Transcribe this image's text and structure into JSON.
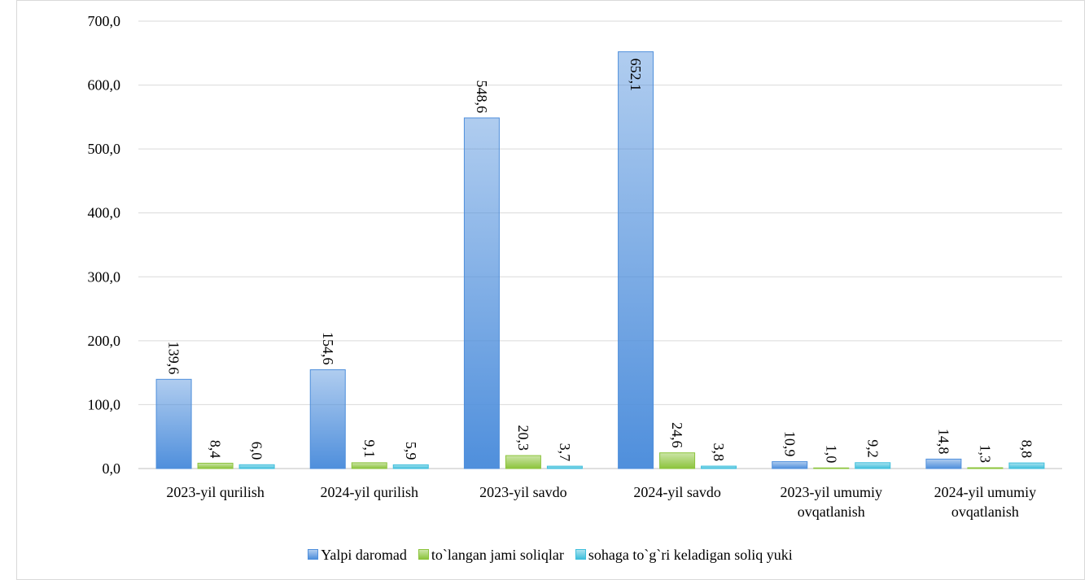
{
  "chart_data": {
    "type": "bar",
    "categories": [
      "2023-yil qurilish",
      "2024-yil qurilish",
      "2023-yil savdo",
      "2024-yil savdo",
      "2023-yil umumiy ovqatlanish",
      "2024-yil umumiy ovqatlanish"
    ],
    "series": [
      {
        "name": "Yalpi daromad",
        "color": "#4f8fdc",
        "values": [
          139.6,
          154.6,
          548.6,
          652.1,
          10.9,
          14.8
        ],
        "value_labels": [
          "139,6",
          "154,6",
          "548,6",
          "652,1",
          "10,9",
          "14,8"
        ]
      },
      {
        "name": "to`langan jami soliqlar",
        "color": "#8cc43c",
        "values": [
          8.4,
          9.1,
          20.3,
          24.6,
          1.0,
          1.3
        ],
        "value_labels": [
          "8,4",
          "9,1",
          "20,3",
          "24,6",
          "1,0",
          "1,3"
        ]
      },
      {
        "name": "sohaga to`g`ri keladigan soliq yuki",
        "color": "#3fbfdc",
        "values": [
          6.0,
          5.9,
          3.7,
          3.8,
          9.2,
          8.8
        ],
        "value_labels": [
          "6,0",
          "5,9",
          "3,7",
          "3,8",
          "9,2",
          "8,8"
        ]
      }
    ],
    "ylim": [
      0,
      700
    ],
    "yticks": [
      {
        "value": 0,
        "label": "0,0"
      },
      {
        "value": 100,
        "label": "100,0"
      },
      {
        "value": 200,
        "label": "200,0"
      },
      {
        "value": 300,
        "label": "300,0"
      },
      {
        "value": 400,
        "label": "400,0"
      },
      {
        "value": 500,
        "label": "500,0"
      },
      {
        "value": 600,
        "label": "600,0"
      },
      {
        "value": 700,
        "label": "700,0"
      }
    ],
    "grid": true,
    "legend": "bottom"
  }
}
